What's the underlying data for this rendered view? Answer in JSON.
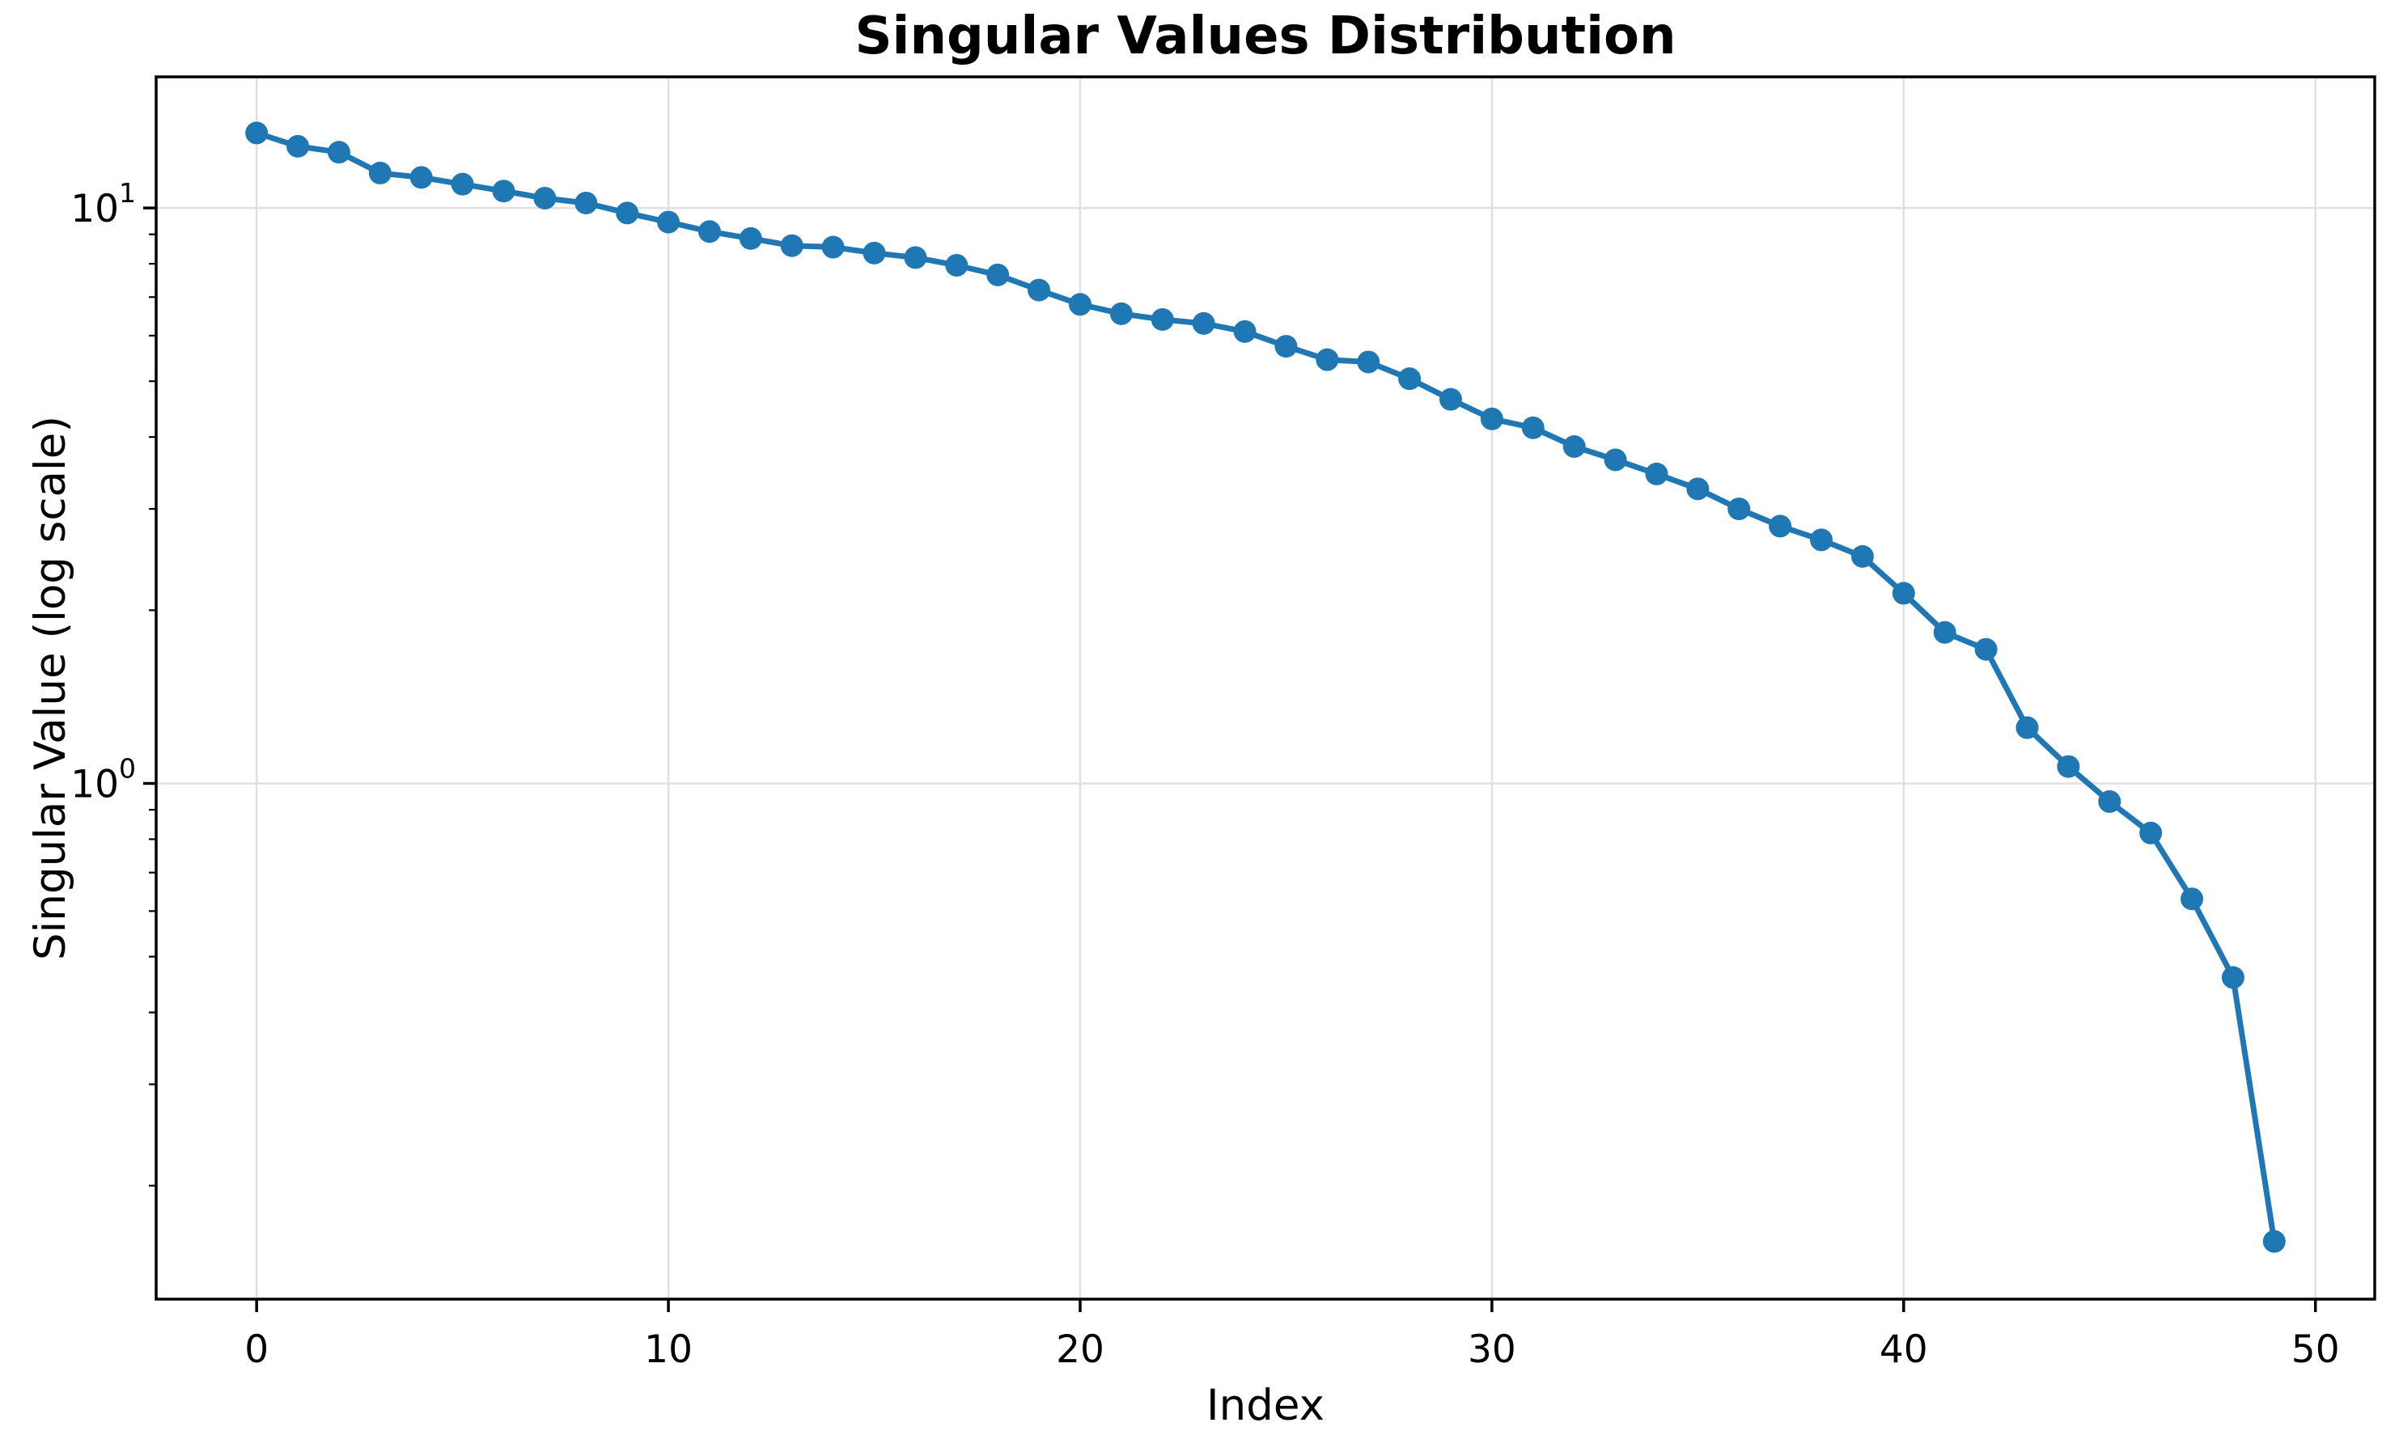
{
  "figure": {
    "title": "Singular Values Distribution",
    "xlabel": "Index",
    "ylabel": "Singular Value (log scale)"
  },
  "chart_data": {
    "type": "line",
    "title": "Singular Values Distribution",
    "xlabel": "Index",
    "ylabel": "Singular Value (log scale)",
    "yscale": "log",
    "xscale": "linear",
    "x": [
      0,
      1,
      2,
      3,
      4,
      5,
      6,
      7,
      8,
      9,
      10,
      11,
      12,
      13,
      14,
      15,
      16,
      17,
      18,
      19,
      20,
      21,
      22,
      23,
      24,
      25,
      26,
      27,
      28,
      29,
      30,
      31,
      32,
      33,
      34,
      35,
      36,
      37,
      38,
      39,
      40,
      41,
      42,
      43,
      44,
      45,
      46,
      47,
      48,
      49
    ],
    "values": [
      13.5,
      12.8,
      12.5,
      11.5,
      11.3,
      11.0,
      10.7,
      10.4,
      10.2,
      9.8,
      9.45,
      9.1,
      8.85,
      8.6,
      8.55,
      8.35,
      8.2,
      7.95,
      7.65,
      7.2,
      6.8,
      6.55,
      6.4,
      6.3,
      6.1,
      5.75,
      5.45,
      5.4,
      5.05,
      4.65,
      4.3,
      4.15,
      3.85,
      3.65,
      3.45,
      3.25,
      3.0,
      2.8,
      2.65,
      2.48,
      2.14,
      1.83,
      1.71,
      1.25,
      1.07,
      0.93,
      0.82,
      0.63,
      0.46,
      0.16
    ],
    "xlim": [
      -2.44,
      51.44
    ],
    "ylim": [
      0.127,
      16.9
    ],
    "xticks": [
      0,
      10,
      20,
      30,
      40,
      50
    ],
    "yticks": [
      {
        "value": 1,
        "label": "10^0"
      },
      {
        "value": 10,
        "label": "10^1"
      }
    ],
    "grid": "major",
    "legend": "none",
    "line_color": "#1f77b4",
    "marker_color": "#1f77b4",
    "grid_color": "#e0e0e0",
    "spine_color": "#000000",
    "background_color": "#ffffff",
    "marker": "o"
  }
}
